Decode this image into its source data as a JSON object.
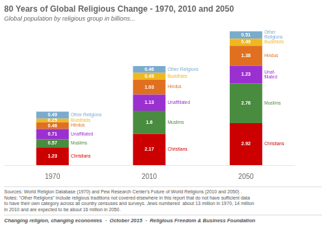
{
  "chart_data": {
    "type": "bar",
    "title": "80 Years of Global Religious Change - 1970, 2010 and 2050",
    "subtitle": "Global population by religious group in billions...",
    "categories": [
      "1970",
      "2010",
      "2050"
    ],
    "series": [
      {
        "name": "Christians",
        "color": "#cc0000",
        "values": [
          1.23,
          2.17,
          2.92
        ]
      },
      {
        "name": "Muslims",
        "color": "#4a8c3f",
        "values": [
          0.57,
          1.6,
          2.76
        ]
      },
      {
        "name": "Unaffiliated",
        "color": "#9b30d0",
        "values": [
          0.71,
          1.13,
          1.23
        ]
      },
      {
        "name": "Hindus",
        "color": "#e07020",
        "values": [
          0.46,
          1.03,
          1.38
        ]
      },
      {
        "name": "Buddhists",
        "color": "#f0b820",
        "values": [
          0.25,
          0.49,
          0.49
        ]
      },
      {
        "name": "Other Religions",
        "color": "#7aabcc",
        "values": [
          0.49,
          0.46,
          0.51
        ]
      }
    ],
    "stacked": true,
    "data_labels": true,
    "ylim": [
      0,
      9.5
    ],
    "tick_labels": "x",
    "grid": false,
    "annotations": [
      [
        "Christians",
        "Muslims",
        "Unaffiliated",
        "Hindus",
        "Buddhists",
        "Other Religions"
      ],
      [
        "Christians",
        "Muslims",
        "Unaffiliated",
        "Hindus",
        "Buddhists",
        "Other Religions"
      ],
      [
        "Christians",
        "Muslims",
        "Unaf-\nfiliated",
        "Hindus",
        "Buddhists",
        "Other\nReligions"
      ]
    ],
    "footnote": "Sources: World Religion Database (1970) and Pew Research Center's Future of World Religions (2010 and 2050) .\nNotes: \"Other Religions\" include religious traditions not covered elsewhere in this report that do not have sufficient data\nto have their own category across all country censuses and surveys. Jews numbered  about 13 million in 1970, 14 million\nin 2010 and are expected to be about 16 million in 2050.",
    "footer": "Changing religion, changing economies  ·  October 2015  ·  Religious Freedom & Business Foundation"
  }
}
